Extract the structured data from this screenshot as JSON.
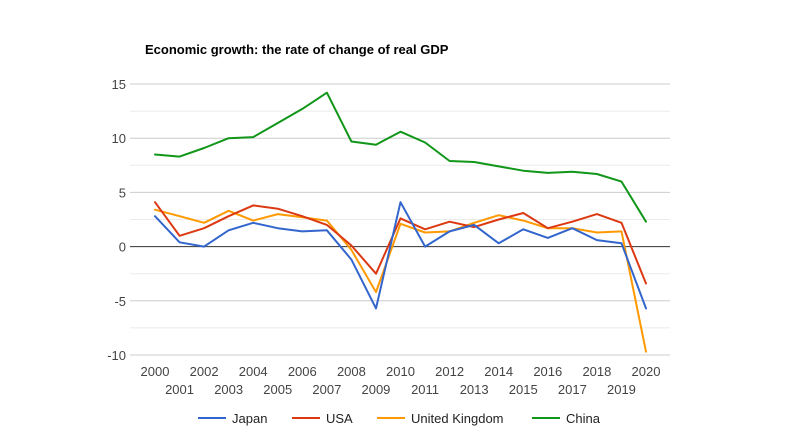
{
  "chart_data": {
    "type": "line",
    "title": "Economic growth: the rate of change of real GDP",
    "xlabel": "",
    "ylabel": "",
    "x": [
      2000,
      2001,
      2002,
      2003,
      2004,
      2005,
      2006,
      2007,
      2008,
      2009,
      2010,
      2011,
      2012,
      2013,
      2014,
      2015,
      2016,
      2017,
      2018,
      2019,
      2020
    ],
    "x_tick_labels": [
      "2000",
      "2001",
      "2002",
      "2003",
      "2004",
      "2005",
      "2006",
      "2007",
      "2008",
      "2009",
      "2010",
      "2011",
      "2012",
      "2013",
      "2014",
      "2015",
      "2016",
      "2017",
      "2018",
      "2019",
      "2020"
    ],
    "ylim": [
      -10,
      15
    ],
    "y_ticks": [
      -10,
      -5,
      0,
      5,
      10,
      15
    ],
    "y_tick_labels": [
      "-10",
      "-5",
      "0",
      "5",
      "10",
      "15"
    ],
    "grid": true,
    "legend_position": "bottom",
    "series": [
      {
        "name": "Japan",
        "color": "#3366cc",
        "values": [
          2.8,
          0.4,
          0.0,
          1.5,
          2.2,
          1.7,
          1.4,
          1.5,
          -1.2,
          -5.7,
          4.1,
          0.0,
          1.4,
          2.0,
          0.3,
          1.6,
          0.8,
          1.7,
          0.6,
          0.3,
          -5.7
        ]
      },
      {
        "name": "USA",
        "color": "#dc3912",
        "values": [
          4.1,
          1.0,
          1.7,
          2.8,
          3.8,
          3.5,
          2.8,
          2.0,
          0.1,
          -2.5,
          2.6,
          1.6,
          2.3,
          1.8,
          2.5,
          3.1,
          1.7,
          2.3,
          3.0,
          2.2,
          -3.4
        ]
      },
      {
        "name": "United Kingdom",
        "color": "#ff9900",
        "values": [
          3.4,
          2.8,
          2.2,
          3.3,
          2.4,
          3.0,
          2.7,
          2.4,
          -0.3,
          -4.2,
          2.1,
          1.3,
          1.4,
          2.2,
          2.9,
          2.4,
          1.7,
          1.7,
          1.3,
          1.4,
          -9.7
        ]
      },
      {
        "name": "China",
        "color": "#109618",
        "values": [
          8.5,
          8.3,
          9.1,
          10.0,
          10.1,
          11.4,
          12.7,
          14.2,
          9.7,
          9.4,
          10.6,
          9.6,
          7.9,
          7.8,
          7.4,
          7.0,
          6.8,
          6.9,
          6.7,
          6.0,
          2.3
        ]
      }
    ]
  }
}
